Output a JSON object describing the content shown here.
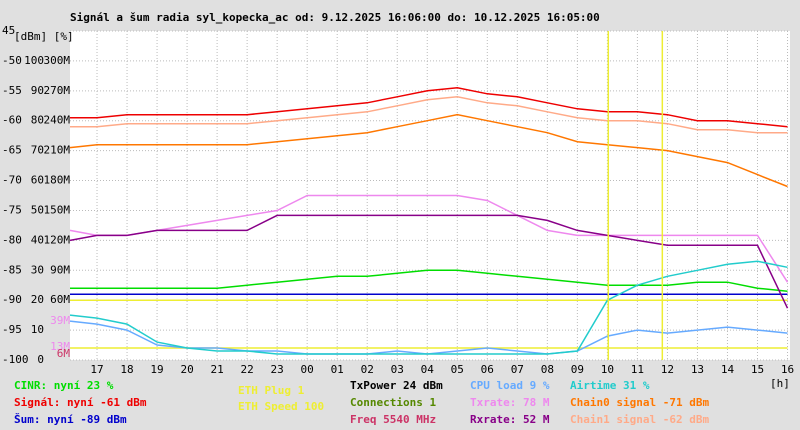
{
  "chart_data": {
    "type": "line",
    "title": "Signál a šum radia syl_kopecka_ac od: 9.12.2025 16:06:00 do: 10.12.2025 16:05:00",
    "axis_units": "[dBm] [%]",
    "x_unit": "[h]",
    "x": [
      16.1,
      17,
      18,
      19,
      20,
      21,
      22,
      23,
      24,
      25,
      26,
      27,
      28,
      29,
      30,
      31,
      32,
      33,
      34,
      35,
      36,
      37,
      38,
      39,
      40
    ],
    "xlim": [
      16.1,
      40.083
    ],
    "xticks": [
      {
        "value": 17,
        "label": "17"
      },
      {
        "value": 18,
        "label": "18"
      },
      {
        "value": 19,
        "label": "19"
      },
      {
        "value": 20,
        "label": "20"
      },
      {
        "value": 21,
        "label": "21"
      },
      {
        "value": 22,
        "label": "22"
      },
      {
        "value": 23,
        "label": "23"
      },
      {
        "value": 24,
        "label": "00"
      },
      {
        "value": 25,
        "label": "01"
      },
      {
        "value": 26,
        "label": "02"
      },
      {
        "value": 27,
        "label": "03"
      },
      {
        "value": 28,
        "label": "04"
      },
      {
        "value": 29,
        "label": "05"
      },
      {
        "value": 30,
        "label": "06"
      },
      {
        "value": 31,
        "label": "07"
      },
      {
        "value": 32,
        "label": "08"
      },
      {
        "value": 33,
        "label": "09"
      },
      {
        "value": 34,
        "label": "10"
      },
      {
        "value": 35,
        "label": "11"
      },
      {
        "value": 36,
        "label": "12"
      },
      {
        "value": 37,
        "label": "13"
      },
      {
        "value": 38,
        "label": "14"
      },
      {
        "value": 39,
        "label": "15"
      },
      {
        "value": 40,
        "label": "16"
      }
    ],
    "ylim": [
      -100,
      -45
    ],
    "yticks": [
      -100,
      -95,
      -90,
      -85,
      -80,
      -75,
      -70,
      -65,
      -60,
      -55,
      -50,
      {
        "value": -45,
        "label": "45"
      }
    ],
    "y2lim": [
      0,
      110
    ],
    "y2ticks": [
      0,
      10,
      20,
      30,
      40,
      50,
      60,
      70,
      80,
      90,
      100
    ],
    "y3lim": [
      0,
      330
    ],
    "y3ticks": [
      {
        "value": 60,
        "label": "60M"
      },
      {
        "value": 90,
        "label": "90M"
      },
      {
        "value": 120,
        "label": "120M"
      },
      {
        "value": 150,
        "label": "150M"
      },
      {
        "value": 180,
        "label": "180M"
      },
      {
        "value": 210,
        "label": "210M"
      },
      {
        "value": 240,
        "label": "240M"
      },
      {
        "value": 270,
        "label": "270M"
      },
      {
        "value": 300,
        "label": "300M"
      }
    ],
    "grid": true,
    "series": [
      {
        "name": "CINR: nyní 23 %",
        "color": "#00dd00",
        "axis": "y2",
        "values": [
          24,
          24,
          24,
          24,
          24,
          24,
          25,
          26,
          27,
          28,
          28,
          29,
          30,
          30,
          29,
          28,
          27,
          26,
          25,
          25,
          25,
          26,
          26,
          24,
          23
        ]
      },
      {
        "name": "Signál: nyní -61 dBm",
        "color": "#ee0000",
        "axis": "y",
        "values": [
          -59.5,
          -59.5,
          -59,
          -59,
          -59,
          -59,
          -59,
          -58.5,
          -58,
          -57.5,
          -57,
          -56,
          -55,
          -54.5,
          -55.5,
          -56,
          -57,
          -58,
          -58.5,
          -58.5,
          -59,
          -60,
          -60,
          -60.5,
          -61
        ]
      },
      {
        "name": "Šum: nyní -89 dBm",
        "color": "#0000cc",
        "axis": "y",
        "values": [
          -89,
          -89,
          -89,
          -89,
          -89,
          -89,
          -89,
          -89,
          -89,
          -89,
          -89,
          -89,
          -89,
          -89,
          -89,
          -89,
          -89,
          -89,
          -89,
          -89,
          -89,
          -89,
          -89,
          -89,
          -89
        ]
      },
      {
        "name": "ETH Plug 1",
        "color": "#eeee33",
        "axis": "y2",
        "values": [
          4,
          4,
          4,
          4,
          4,
          4,
          4,
          4,
          4,
          4,
          4,
          4,
          4,
          4,
          4,
          4,
          4,
          4,
          4,
          4,
          4,
          4,
          4,
          4,
          4
        ]
      },
      {
        "name": "ETH Speed 100",
        "color": "#eeee33",
        "axis": "y2",
        "values": [
          20,
          20,
          20,
          20,
          20,
          20,
          20,
          20,
          20,
          20,
          20,
          20,
          20,
          20,
          20,
          20,
          20,
          20,
          20,
          20,
          20,
          20,
          20,
          20,
          20
        ]
      },
      {
        "name": "CPU load 9 %",
        "color": "#66aaff",
        "axis": "y2",
        "values": [
          13,
          12,
          10,
          5,
          4,
          4,
          3,
          3,
          2,
          2,
          2,
          3,
          2,
          3,
          4,
          3,
          2,
          3,
          8,
          10,
          9,
          10,
          11,
          10,
          9
        ]
      },
      {
        "name": "Txrate: 78 M",
        "color": "#ee88ee",
        "axis": "y3",
        "values": [
          130,
          125,
          125,
          130,
          135,
          140,
          145,
          150,
          165,
          165,
          165,
          165,
          165,
          165,
          160,
          145,
          130,
          125,
          125,
          125,
          125,
          125,
          125,
          125,
          78
        ]
      },
      {
        "name": "Rxrate: 52 M",
        "color": "#880088",
        "axis": "y3",
        "values": [
          120,
          125,
          125,
          130,
          130,
          130,
          130,
          145,
          145,
          145,
          145,
          145,
          145,
          145,
          145,
          145,
          140,
          130,
          125,
          120,
          115,
          115,
          115,
          115,
          52
        ]
      },
      {
        "name": "Airtime 31 %",
        "color": "#22cccc",
        "axis": "y2",
        "values": [
          15,
          14,
          12,
          6,
          4,
          3,
          3,
          2,
          2,
          2,
          2,
          2,
          2,
          2,
          2,
          2,
          2,
          3,
          20,
          25,
          28,
          30,
          32,
          33,
          31
        ]
      },
      {
        "name": "Chain0 signal -71 dBm",
        "color": "#ff7700",
        "axis": "y",
        "values": [
          -64.5,
          -64,
          -64,
          -64,
          -64,
          -64,
          -64,
          -63.5,
          -63,
          -62.5,
          -62,
          -61,
          -60,
          -59,
          -60,
          -61,
          -62,
          -63.5,
          -64,
          -64.5,
          -65,
          -66,
          -67,
          -69,
          -71
        ]
      },
      {
        "name": "Chain1 signal -62 dBm",
        "color": "#ffaa88",
        "axis": "y",
        "values": [
          -61,
          -61,
          -60.5,
          -60.5,
          -60.5,
          -60.5,
          -60.5,
          -60,
          -59.5,
          -59,
          -58.5,
          -57.5,
          -56.5,
          -56,
          -57,
          -57.5,
          -58.5,
          -59.5,
          -60,
          -60,
          -60.5,
          -61.5,
          -61.5,
          -62,
          -62
        ]
      }
    ],
    "legend_extra": [
      {
        "text": "TxPower 24 dBm",
        "color": "#000000"
      },
      {
        "text": "Connections 1",
        "color": "#558800"
      },
      {
        "text": "Freq 5540 MHz",
        "color": "#cc3366"
      }
    ],
    "events_x": [
      34.03,
      35.83
    ],
    "events_color": "#eeee33",
    "annotations": [
      {
        "text": "39M",
        "value": 39,
        "color": "#ee88ee"
      },
      {
        "text": "13M",
        "value": 13,
        "color": "#ee88ee"
      },
      {
        "text": "6M",
        "value": 6,
        "color": "#cc3366"
      }
    ]
  }
}
